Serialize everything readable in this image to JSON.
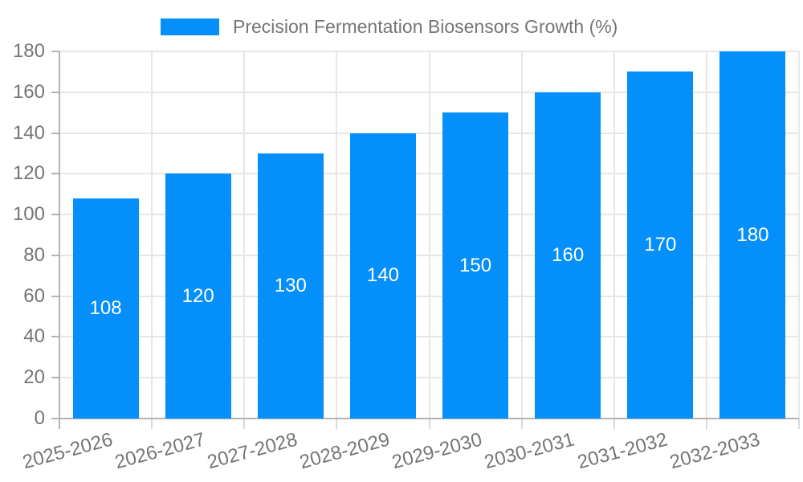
{
  "chart_data": {
    "type": "bar",
    "title": "Precision Fermentation Biosensors Growth (%)",
    "legend": {
      "label": "Precision Fermentation Biosensors Growth (%)",
      "position": "top-center"
    },
    "categories": [
      "2025-2026",
      "2026-2027",
      "2027-2028",
      "2028-2029",
      "2029-2030",
      "2030-2031",
      "2031-2032",
      "2032-2033"
    ],
    "values": [
      108,
      120,
      130,
      140,
      150,
      160,
      170,
      180
    ],
    "value_labels": [
      "108",
      "120",
      "130",
      "140",
      "150",
      "160",
      "170",
      "180"
    ],
    "xlabel": "",
    "ylabel": "",
    "ylim": [
      0,
      180
    ],
    "ytick_step": 20,
    "ytick_labels": [
      "0",
      "20",
      "40",
      "60",
      "80",
      "100",
      "120",
      "140",
      "160",
      "180"
    ],
    "grid": "horizontal and vertical, light gray",
    "colors": {
      "bar": "#058ffa",
      "value_label": "#ffffff",
      "axis": "#b3b3b3",
      "gridline": "#e6e6e6",
      "tick_label": "#757575",
      "background": "#ffffff"
    }
  }
}
